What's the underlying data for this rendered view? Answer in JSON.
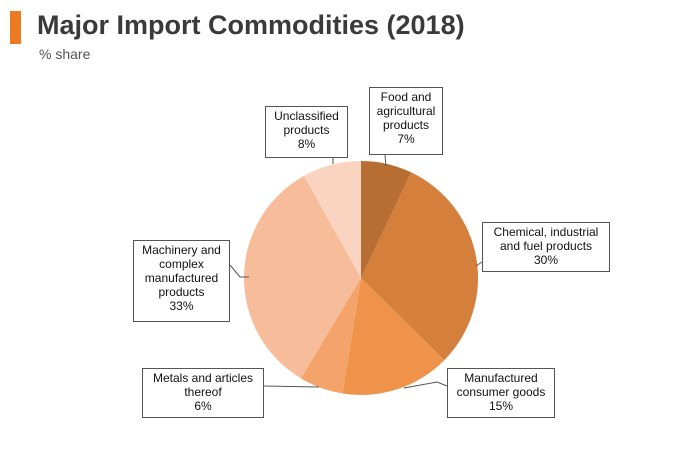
{
  "header": {
    "title": "Major Import Commodities (2018)",
    "subtitle": "% share",
    "accent_color": "#ec7a22"
  },
  "chart_data": {
    "type": "pie",
    "title": "Major Import Commodities (2018)",
    "subtitle": "% share",
    "unit": "%",
    "start": "12 o'clock",
    "direction": "clockwise",
    "slices": [
      {
        "label_lines": [
          "Food and",
          "agricultural",
          "products"
        ],
        "value": 7,
        "value_label": "7%",
        "color": "#b86d32"
      },
      {
        "label_lines": [
          "Chemical, industrial",
          "and fuel products"
        ],
        "value": 30,
        "value_label": "30%",
        "color": "#d47f3b"
      },
      {
        "label_lines": [
          "Manufactured",
          "consumer goods"
        ],
        "value": 15,
        "value_label": "15%",
        "color": "#ee9349"
      },
      {
        "label_lines": [
          "Metals and articles",
          "thereof"
        ],
        "value": 6,
        "value_label": "6%",
        "color": "#f4a46a"
      },
      {
        "label_lines": [
          "Machinery and",
          "complex",
          "manufactured",
          "products"
        ],
        "value": 33,
        "value_label": "33%",
        "color": "#f7bd9a"
      },
      {
        "label_lines": [
          "Unclassified",
          "products"
        ],
        "value": 8,
        "value_label": "8%",
        "color": "#fad4c0"
      }
    ]
  }
}
